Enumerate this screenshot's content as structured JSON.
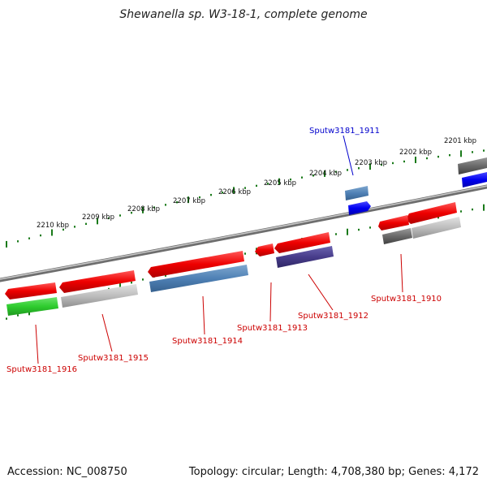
{
  "title": "Shewanella sp. W3-18-1, complete genome",
  "footer": {
    "accession": "Accession: NC_008750",
    "topology": "Topology: circular; Length: 4,708,380 bp; Genes: 4,172"
  },
  "colors": {
    "backbone": "#8c8c8c",
    "ruler": "#1a7a1a",
    "label_red": "#cc0000",
    "label_blue": "#0000cc"
  },
  "ruler": {
    "ticks": [
      {
        "label": "2201 kbp"
      },
      {
        "label": "2202 kbp"
      },
      {
        "label": "2203 kbp"
      },
      {
        "label": "2204 kbp"
      },
      {
        "label": "2205 kbp"
      },
      {
        "label": "2206 kbp"
      },
      {
        "label": "2207 kbp"
      },
      {
        "label": "2208 kbp"
      },
      {
        "label": "2209 kbp"
      },
      {
        "label": "2210 kbp"
      }
    ]
  },
  "gene_labels": [
    {
      "text": "Sputw3181_1911",
      "color": "blue"
    },
    {
      "text": "Sputw3181_1910",
      "color": "red"
    },
    {
      "text": "Sputw3181_1912",
      "color": "red"
    },
    {
      "text": "Sputw3181_1913",
      "color": "red"
    },
    {
      "text": "Sputw3181_1914",
      "color": "red"
    },
    {
      "text": "Sputw3181_1915",
      "color": "red"
    },
    {
      "text": "Sputw3181_1916",
      "color": "red"
    }
  ]
}
